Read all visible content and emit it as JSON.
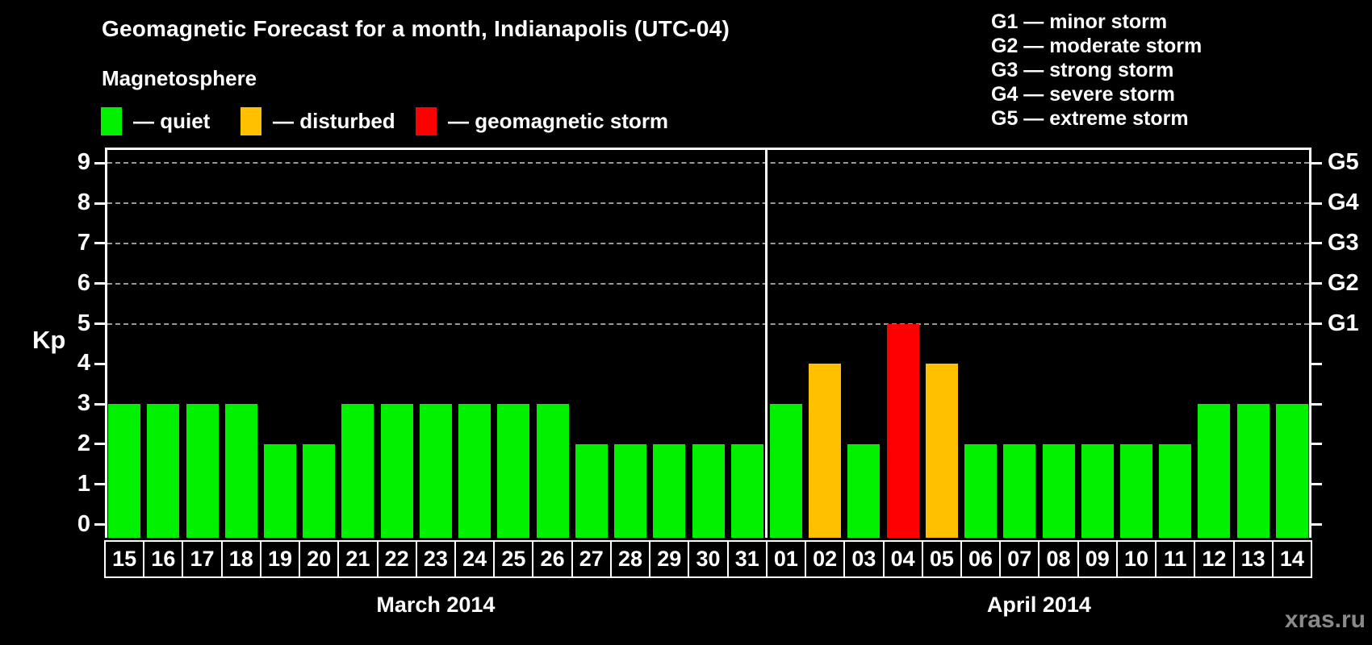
{
  "page": {
    "watermark": "xras.ru",
    "background_color": "#000000",
    "text_color": "#ffffff"
  },
  "legend": {
    "title": "Magnetosphere",
    "items": [
      {
        "name": "quiet",
        "label": "— quiet",
        "color": "#00F000"
      },
      {
        "name": "disturbed",
        "label": "— disturbed",
        "color": "#FFC000"
      },
      {
        "name": "storm",
        "label": "— geomagnetic storm",
        "color": "#FF0000"
      }
    ]
  },
  "g_scale_legend": [
    "G1 — minor storm",
    "G2 — moderate storm",
    "G3 — strong storm",
    "G4 — severe storm",
    "G5 — extreme storm"
  ],
  "chart_data": {
    "type": "bar",
    "title": "Geomagnetic Forecast for a month, Indianapolis (UTC-04)",
    "xlabel": "",
    "ylabel": "Kp",
    "ylim": [
      -0.35,
      9.72
    ],
    "y_ticks": [
      0,
      1,
      2,
      3,
      4,
      5,
      6,
      7,
      8,
      9
    ],
    "gridlines_at": [
      5,
      6,
      7,
      8,
      9
    ],
    "grid_style": "dashed horizontal gray lines at G-storm levels only",
    "right_axis_labels": [
      {
        "kp": 5,
        "label": "G1"
      },
      {
        "kp": 6,
        "label": "G2"
      },
      {
        "kp": 7,
        "label": "G3"
      },
      {
        "kp": 8,
        "label": "G4"
      },
      {
        "kp": 9,
        "label": "G5"
      }
    ],
    "months": [
      {
        "label": "March 2014",
        "days": 17
      },
      {
        "label": "April 2014",
        "days": 14
      }
    ],
    "categories": [
      "15",
      "16",
      "17",
      "18",
      "19",
      "20",
      "21",
      "22",
      "23",
      "24",
      "25",
      "26",
      "27",
      "28",
      "29",
      "30",
      "31",
      "01",
      "02",
      "03",
      "04",
      "05",
      "06",
      "07",
      "08",
      "09",
      "10",
      "11",
      "12",
      "13",
      "14"
    ],
    "values": [
      3,
      3,
      3,
      3,
      2,
      2,
      3,
      3,
      3,
      3,
      3,
      3,
      2,
      2,
      2,
      2,
      2,
      3,
      4,
      2,
      5,
      4,
      2,
      2,
      2,
      2,
      2,
      2,
      3,
      3,
      3
    ],
    "statuses": [
      "quiet",
      "quiet",
      "quiet",
      "quiet",
      "quiet",
      "quiet",
      "quiet",
      "quiet",
      "quiet",
      "quiet",
      "quiet",
      "quiet",
      "quiet",
      "quiet",
      "quiet",
      "quiet",
      "quiet",
      "quiet",
      "disturbed",
      "quiet",
      "storm",
      "disturbed",
      "quiet",
      "quiet",
      "quiet",
      "quiet",
      "quiet",
      "quiet",
      "quiet",
      "quiet",
      "quiet"
    ],
    "colors": {
      "quiet": "#00F000",
      "disturbed": "#FFC000",
      "storm": "#FF0000"
    },
    "legend_position": "top-left",
    "month_separator": "vertical white line between 31 March and 01 April"
  }
}
